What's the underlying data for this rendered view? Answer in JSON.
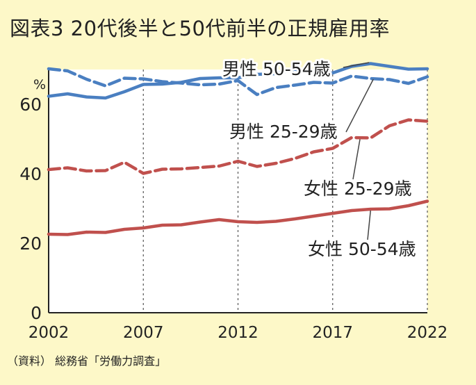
{
  "title": "図表3 20代後半と50代前半の正規雇用率",
  "source": "（資料） 総務省「労働力調査」",
  "chart_data": {
    "type": "line",
    "title": "図表3 20代後半と50代前半の正規雇用率",
    "ylabel": "%",
    "xlabel": "",
    "ylim": [
      0,
      70
    ],
    "xlim": [
      2002,
      2022
    ],
    "yticks": [
      0,
      20,
      40,
      60
    ],
    "xticks": [
      2002,
      2007,
      2012,
      2017,
      2022
    ],
    "grid": "vertical dashed at x ticks",
    "x": [
      2002,
      2003,
      2004,
      2005,
      2006,
      2007,
      2008,
      2009,
      2010,
      2011,
      2012,
      2013,
      2014,
      2015,
      2016,
      2017,
      2018,
      2019,
      2020,
      2021,
      2022
    ],
    "series": [
      {
        "name": "男性 50-54歳",
        "color": "#4a7fc1",
        "dash": false,
        "values": [
          62.3,
          63.0,
          62.1,
          61.8,
          63.6,
          65.7,
          65.8,
          66.3,
          67.4,
          67.6,
          67.6,
          68.6,
          68.8,
          70.1,
          68.9,
          69.0,
          70.9,
          71.7,
          70.9,
          70.1,
          70.2
        ]
      },
      {
        "name": "男性 25-29歳",
        "color": "#4a7fc1",
        "dash": true,
        "values": [
          70.2,
          69.6,
          67.2,
          65.3,
          67.5,
          67.3,
          66.5,
          66.1,
          65.6,
          65.8,
          66.8,
          62.8,
          64.8,
          65.5,
          66.3,
          66.1,
          68.1,
          67.4,
          67.1,
          66.0,
          67.9
        ]
      },
      {
        "name": "女性 25-29歳",
        "color": "#c0504d",
        "dash": true,
        "values": [
          41.2,
          41.7,
          40.8,
          40.9,
          43.3,
          40.1,
          41.3,
          41.4,
          41.8,
          42.2,
          43.6,
          42.1,
          43.0,
          44.4,
          46.3,
          47.3,
          50.4,
          50.3,
          53.8,
          55.5,
          55.1
        ]
      },
      {
        "name": "女性 50-54歳",
        "color": "#c0504d",
        "dash": false,
        "values": [
          22.6,
          22.5,
          23.2,
          23.1,
          24.0,
          24.4,
          25.2,
          25.3,
          26.1,
          26.8,
          26.2,
          26.0,
          26.3,
          27.0,
          27.8,
          28.6,
          29.4,
          29.8,
          29.9,
          30.8,
          32.1
        ]
      }
    ],
    "labels": [
      {
        "text": "男性 50-54歳",
        "series": 0
      },
      {
        "text": "男性 25-29歳",
        "series": 1
      },
      {
        "text": "女性 25-29歳",
        "series": 2
      },
      {
        "text": "女性 50-54歳",
        "series": 3
      }
    ]
  }
}
